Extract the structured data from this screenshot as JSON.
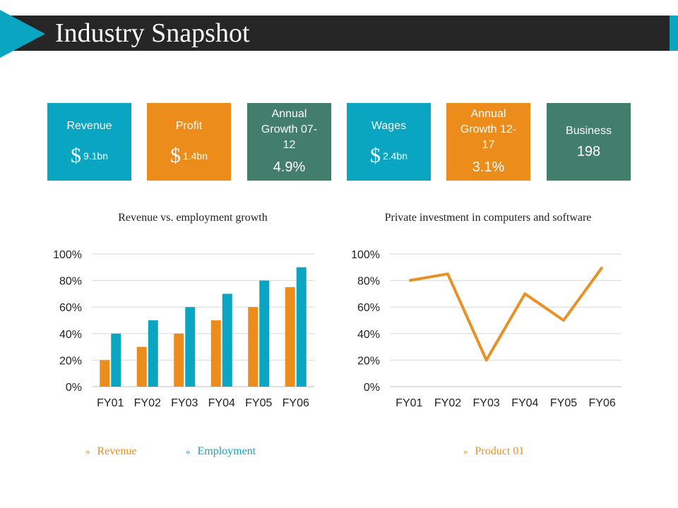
{
  "header": {
    "title": "Industry Snapshot"
  },
  "colors": {
    "teal": "#0aa6c1",
    "orange": "#ec8c1a",
    "green": "#437e6c",
    "dark": "#262626",
    "line": "#e99126"
  },
  "cards": [
    {
      "label": "Revenue",
      "currency": "$",
      "value": "9.1bn",
      "color": "#0aa6c1"
    },
    {
      "label": "Profit",
      "currency": "$",
      "value": "1.4bn",
      "color": "#ec8c1a"
    },
    {
      "label": "Annual Growth 07-12",
      "value": "4.9%",
      "color": "#437e6c"
    },
    {
      "label": "Wages",
      "currency": "$",
      "value": "2.4bn",
      "color": "#0aa6c1"
    },
    {
      "label": "Annual Growth 12-17",
      "value": "3.1%",
      "color": "#ec8c1a"
    },
    {
      "label": "Business",
      "value": "198",
      "color": "#437e6c"
    }
  ],
  "chart_data": [
    {
      "type": "bar",
      "title": "Revenue vs. employment growth",
      "categories": [
        "FY01",
        "FY02",
        "FY03",
        "FY04",
        "FY05",
        "FY06"
      ],
      "series": [
        {
          "name": "Revenue",
          "values": [
            20,
            30,
            40,
            50,
            60,
            75
          ],
          "color": "#ec8c1a"
        },
        {
          "name": "Employment",
          "values": [
            40,
            50,
            60,
            70,
            80,
            90
          ],
          "color": "#0aa6c1"
        }
      ],
      "ylim": [
        0,
        100
      ],
      "yticks": [
        "0%",
        "20%",
        "40%",
        "60%",
        "80%",
        "100%"
      ],
      "xlabel": "",
      "ylabel": "",
      "grid": true,
      "legend": "bottom"
    },
    {
      "type": "line",
      "title": "Private investment in computers and software",
      "categories": [
        "FY01",
        "FY02",
        "FY03",
        "FY04",
        "FY05",
        "FY06"
      ],
      "series": [
        {
          "name": "Product 01",
          "values": [
            80,
            85,
            20,
            70,
            50,
            90
          ],
          "color": "#e99126"
        }
      ],
      "ylim": [
        0,
        100
      ],
      "yticks": [
        "0%",
        "20%",
        "40%",
        "60%",
        "80%",
        "100%"
      ],
      "xlabel": "",
      "ylabel": "",
      "grid": true,
      "legend": "bottom"
    }
  ]
}
